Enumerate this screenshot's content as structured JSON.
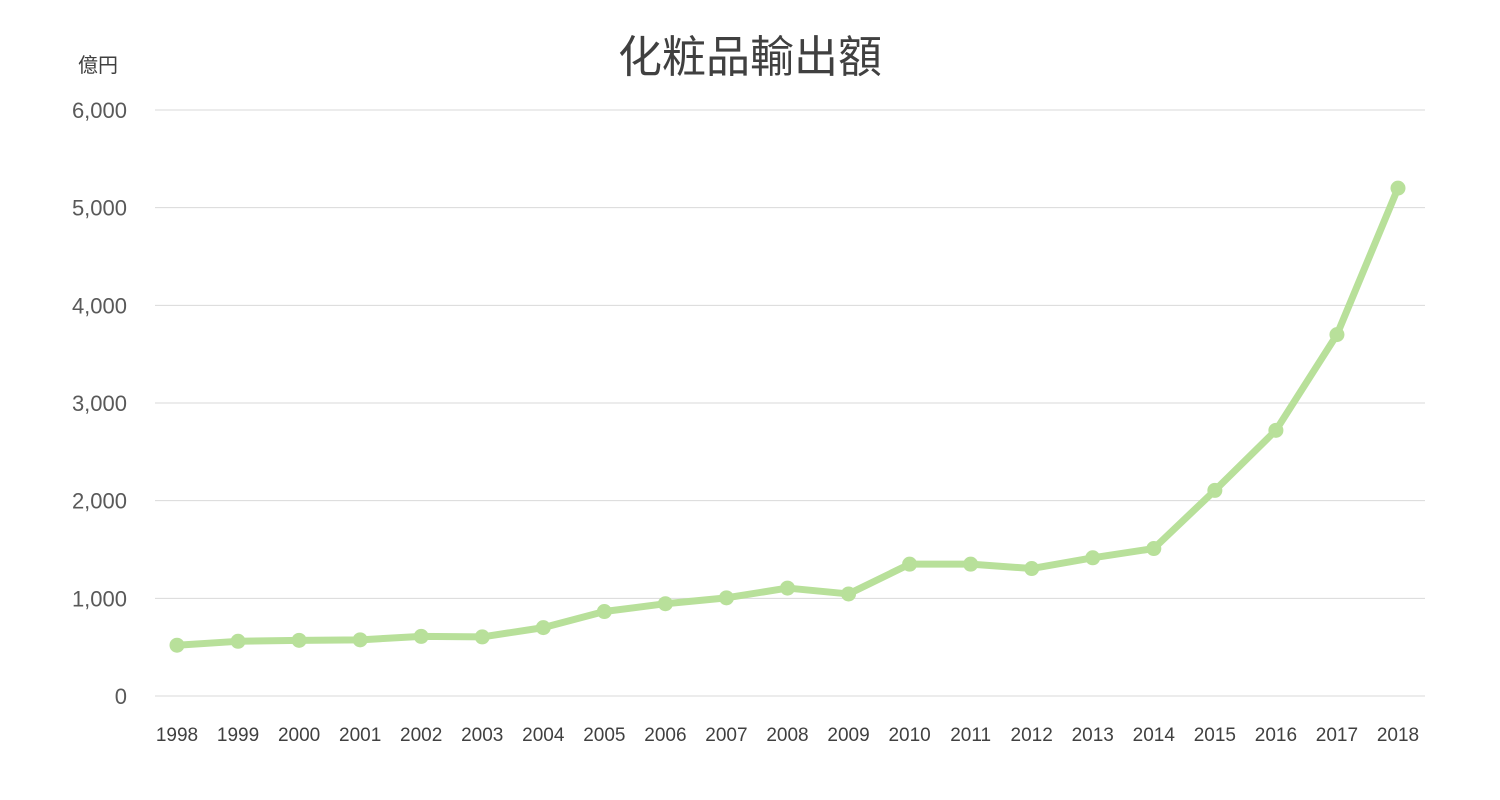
{
  "chart_data": {
    "type": "line",
    "title": "化粧品輸出額",
    "ylabel": "億円",
    "xlabel": "",
    "categories": [
      "1998",
      "1999",
      "2000",
      "2001",
      "2002",
      "2003",
      "2004",
      "2005",
      "2006",
      "2007",
      "2008",
      "2009",
      "2010",
      "2011",
      "2012",
      "2013",
      "2014",
      "2015",
      "2016",
      "2017",
      "2018"
    ],
    "series": [
      {
        "values": [
          520,
          560,
          570,
          575,
          610,
          605,
          700,
          865,
          945,
          1005,
          1105,
          1045,
          1350,
          1350,
          1305,
          1415,
          1510,
          2105,
          2720,
          3700,
          5200
        ]
      }
    ],
    "ylim": [
      0,
      6000
    ],
    "yticks": [
      0,
      1000,
      2000,
      3000,
      4000,
      5000,
      6000
    ],
    "ytick_labels": [
      "0",
      "1,000",
      "2,000",
      "3,000",
      "4,000",
      "5,000",
      "6,000"
    ],
    "grid": true,
    "legend": "none",
    "colors": {
      "line": "#b8e09a",
      "grid": "#d9d9d9",
      "text": "#404040"
    }
  }
}
